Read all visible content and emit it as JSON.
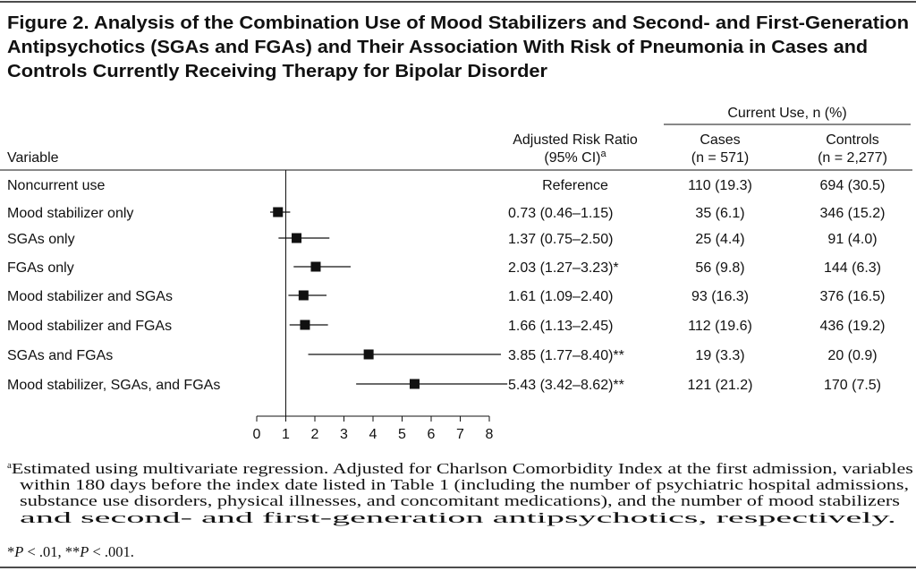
{
  "title_lines": [
    "Figure 2. Analysis of the Combination Use of Mood Stabilizers and Second- and First-Generation",
    "Antipsychotics (SGAs and FGAs) and Their Association With Risk of Pneumonia in Cases and",
    "Controls Currently Receiving Therapy for Bipolar Disorder"
  ],
  "chart_data": {
    "type": "forest",
    "categories": [
      "Noncurrent use",
      "Mood stabilizer only",
      "SGAs only",
      "FGAs only",
      "Mood stabilizer and SGAs",
      "Mood stabilizer and FGAs",
      "SGAs and FGAs",
      "Mood stabilizer, SGAs, and FGAs"
    ],
    "values": [
      null,
      0.73,
      1.37,
      2.03,
      1.61,
      1.66,
      3.85,
      5.43
    ],
    "lower": [
      null,
      0.46,
      0.75,
      1.27,
      1.09,
      1.13,
      1.77,
      3.42
    ],
    "upper": [
      null,
      1.15,
      2.5,
      3.23,
      2.4,
      2.45,
      8.4,
      8.62
    ],
    "value_labels": [
      "Reference",
      "0.73 (0.46–1.15)",
      "1.37 (0.75–2.50)",
      "2.03 (1.27–3.23)*",
      "1.61 (1.09–2.40)",
      "1.66 (1.13–2.45)",
      "3.85 (1.77–8.40)**",
      "5.43 (3.42–8.62)**"
    ],
    "xlim": [
      0,
      8
    ],
    "xticks": [
      0,
      1,
      2,
      3,
      4,
      5,
      6,
      7,
      8
    ],
    "reference_line": 1,
    "color": "#111111"
  },
  "table": {
    "variable_header": "Variable",
    "ratio_header": [
      "Adjusted Risk Ratio",
      "(95% CI)",
      "a"
    ],
    "group_header": "Current Use, n (%)",
    "cases_header": [
      "Cases",
      "(n = 571)"
    ],
    "controls_header": [
      "Controls",
      "(n = 2,277)"
    ],
    "cases": [
      "110 (19.3)",
      "35 (6.1)",
      "25 (4.4)",
      "56 (9.8)",
      "93 (16.3)",
      "112 (19.6)",
      "19 (3.3)",
      "121 (21.2)"
    ],
    "controls": [
      "694 (30.5)",
      "346 (15.2)",
      "91 (4.0)",
      "144 (6.3)",
      "376 (16.5)",
      "436 (19.2)",
      "20 (0.9)",
      "170 (7.5)"
    ]
  },
  "footnote": {
    "mark": "a",
    "lines": [
      "Estimated using multivariate regression. Adjusted for Charlson Comorbidity Index at the first admission, variables",
      "within 180 days before the index date listed in Table 1 (including the number of psychiatric hospital admissions,",
      "substance use disorders, physical illnesses, and concomitant medications), and the number of mood stabilizers",
      "and second- and first-generation antipsychotics, respectively."
    ],
    "significance": [
      "*",
      "P",
      " < .01, **",
      "P",
      " < .001."
    ]
  }
}
